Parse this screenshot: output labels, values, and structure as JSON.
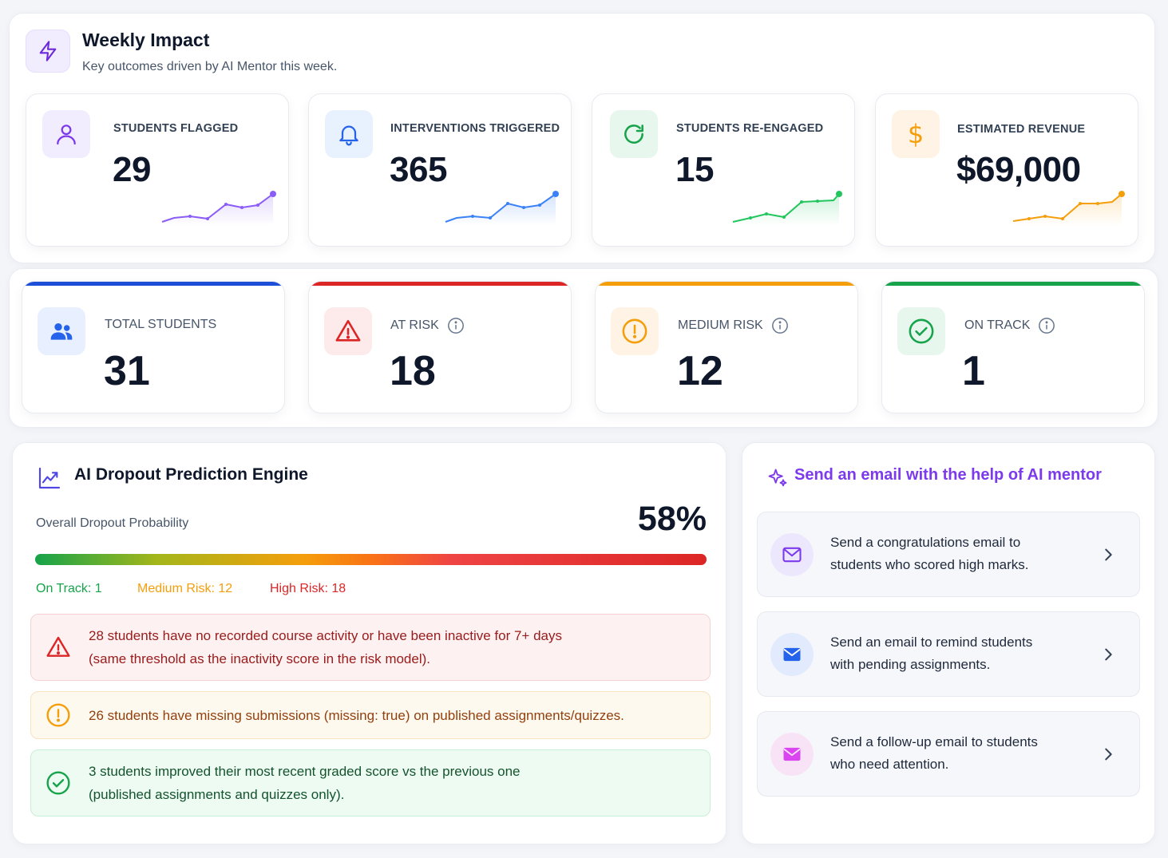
{
  "weekly_impact": {
    "title": "Weekly Impact",
    "subtitle": "Key outcomes driven by AI Mentor this week.",
    "metrics": [
      {
        "label": "STUDENTS FLAGGED",
        "value": "29",
        "icon": "user-icon",
        "color": "#8b5cf6"
      },
      {
        "label": "INTERVENTIONS TRIGGERED",
        "value": "365",
        "icon": "bell-icon",
        "color": "#3b82f6"
      },
      {
        "label": "STUDENTS RE-ENGAGED",
        "value": "15",
        "icon": "refresh-icon",
        "color": "#22c55e"
      },
      {
        "label": "ESTIMATED REVENUE",
        "value": "$69,000",
        "icon": "dollar-icon",
        "color": "#f59e0b"
      }
    ]
  },
  "status_cards": [
    {
      "label": "TOTAL STUDENTS",
      "value": "31",
      "color": "#1d4ed8",
      "icon": "users-icon",
      "info": false
    },
    {
      "label": "AT RISK",
      "value": "18",
      "color": "#dc2626",
      "icon": "warning-icon",
      "info": true
    },
    {
      "label": "MEDIUM RISK",
      "value": "12",
      "color": "#f59e0b",
      "icon": "alert-circle-icon",
      "info": true
    },
    {
      "label": "ON TRACK",
      "value": "1",
      "color": "#16a34a",
      "icon": "check-circle-icon",
      "info": true
    }
  ],
  "prediction": {
    "title": "AI Dropout Prediction Engine",
    "overall_label": "Overall Dropout Probability",
    "overall_value": "58%",
    "overall_fraction": 0.58,
    "legend": {
      "on_track": "On Track: 1",
      "medium": "Medium Risk: 12",
      "high": "High Risk: 18"
    },
    "alerts": [
      {
        "type": "danger",
        "icon": "warning-icon",
        "text_line1": "28 students have no recorded course activity or have been inactive for 7+ days",
        "text_line2": "(same threshold as the inactivity score in the risk model)."
      },
      {
        "type": "warning",
        "icon": "alert-circle-icon",
        "text_line1": "26 students have missing submissions (missing: true) on published assignments/quizzes.",
        "text_line2": ""
      },
      {
        "type": "success",
        "icon": "check-circle-icon",
        "text_line1": "3 students improved their most recent graded score vs the previous one",
        "text_line2": "(published assignments and quizzes only)."
      }
    ]
  },
  "email_panel": {
    "title": "Send an email with the help of AI mentor",
    "items": [
      {
        "line1": "Send a congratulations email to",
        "line2": "students who scored high marks.",
        "icon": "mail-icon"
      },
      {
        "line1": "Send an email to remind students",
        "line2": "with pending assignments.",
        "icon": "mail-icon"
      },
      {
        "line1": "Send a follow-up email to students",
        "line2": "who need attention.",
        "icon": "mail-icon"
      }
    ]
  }
}
